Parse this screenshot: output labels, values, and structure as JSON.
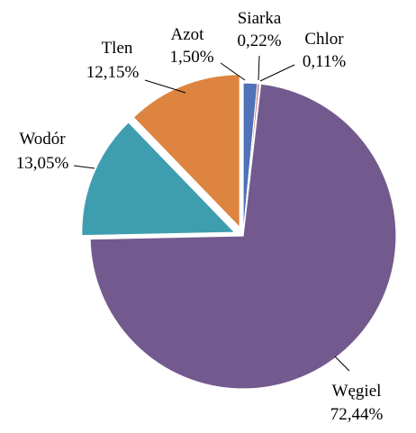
{
  "chart_data": {
    "type": "pie",
    "title": "",
    "slices": [
      {
        "label": "Azot",
        "value_text": "1,50%",
        "value": 1.5,
        "color": "#4f72b8"
      },
      {
        "label": "Siarka",
        "value_text": "0,22%",
        "value": 0.22,
        "color": "#b94a48"
      },
      {
        "label": "Chlor",
        "value_text": "0,11%",
        "value": 0.11,
        "color": "#93b04a"
      },
      {
        "label": "Węgiel",
        "value_text": "72,44%",
        "value": 72.44,
        "color": "#725a8e"
      },
      {
        "label": "Wodór",
        "value_text": "13,05%",
        "value": 13.05,
        "color": "#3f9db0"
      },
      {
        "label": "Tlen",
        "value_text": "12,15%",
        "value": 12.15,
        "color": "#dc8440"
      }
    ],
    "start_angle_deg": 0,
    "direction": "clockwise",
    "exploded": [
      "Wodór",
      "Tlen"
    ],
    "legend": "none",
    "data_labels": "outside with leader lines"
  }
}
